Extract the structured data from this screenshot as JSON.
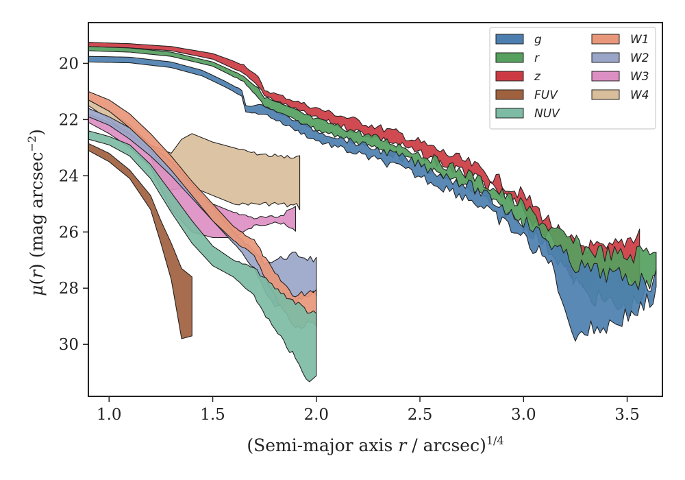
{
  "chart_data": {
    "type": "area",
    "xlabel": "(Semi-major axis r / arcsec)^{1/4}",
    "ylabel": "μ(r) (mag arcsec^{−2})",
    "xlim": [
      0.9,
      3.67
    ],
    "ylim": [
      31.85,
      18.55
    ],
    "y_inverted": true,
    "x_ticks": [
      "1.0",
      "1.5",
      "2.0",
      "2.5",
      "3.0",
      "3.5"
    ],
    "y_ticks": [
      "20",
      "22",
      "24",
      "26",
      "28",
      "30"
    ],
    "legend_position": "top-right",
    "series": [
      {
        "name": "g",
        "color": "#4c7fb0",
        "upper": [
          [
            0.9,
            19.75
          ],
          [
            1.1,
            19.78
          ],
          [
            1.3,
            19.95
          ],
          [
            1.45,
            20.25
          ],
          [
            1.55,
            20.6
          ],
          [
            1.64,
            20.95
          ],
          [
            1.66,
            21.5
          ],
          [
            1.75,
            21.5
          ],
          [
            2.0,
            22.4
          ],
          [
            2.4,
            23.3
          ],
          [
            2.75,
            24.4
          ],
          [
            3.0,
            25.6
          ],
          [
            3.15,
            26.5
          ],
          [
            3.25,
            27.2
          ],
          [
            3.4,
            27.5
          ],
          [
            3.6,
            27.8
          ],
          [
            3.64,
            27.7
          ]
        ],
        "lower": [
          [
            0.9,
            19.95
          ],
          [
            1.1,
            19.98
          ],
          [
            1.3,
            20.15
          ],
          [
            1.45,
            20.45
          ],
          [
            1.55,
            20.8
          ],
          [
            1.64,
            21.15
          ],
          [
            1.66,
            21.75
          ],
          [
            1.75,
            21.8
          ],
          [
            2.0,
            22.75
          ],
          [
            2.4,
            23.7
          ],
          [
            2.75,
            24.85
          ],
          [
            3.0,
            26.2
          ],
          [
            3.15,
            27.3
          ],
          [
            3.2,
            29.0
          ],
          [
            3.25,
            29.6
          ],
          [
            3.4,
            29.35
          ],
          [
            3.55,
            28.8
          ],
          [
            3.64,
            28.3
          ]
        ]
      },
      {
        "name": "r",
        "color": "#55a05e",
        "upper": [
          [
            0.9,
            19.4
          ],
          [
            1.1,
            19.45
          ],
          [
            1.3,
            19.6
          ],
          [
            1.5,
            19.95
          ],
          [
            1.65,
            20.45
          ],
          [
            1.72,
            20.9
          ],
          [
            1.75,
            21.2
          ],
          [
            2.0,
            22.0
          ],
          [
            2.4,
            22.9
          ],
          [
            2.75,
            24.0
          ],
          [
            3.0,
            25.1
          ],
          [
            3.15,
            26.0
          ],
          [
            3.3,
            26.6
          ],
          [
            3.5,
            26.9
          ],
          [
            3.64,
            26.5
          ]
        ],
        "lower": [
          [
            0.9,
            19.55
          ],
          [
            1.1,
            19.6
          ],
          [
            1.3,
            19.75
          ],
          [
            1.5,
            20.1
          ],
          [
            1.65,
            20.65
          ],
          [
            1.72,
            21.2
          ],
          [
            1.75,
            21.55
          ],
          [
            2.0,
            22.35
          ],
          [
            2.4,
            23.3
          ],
          [
            2.75,
            24.5
          ],
          [
            3.0,
            25.7
          ],
          [
            3.15,
            26.8
          ],
          [
            3.3,
            28.2
          ],
          [
            3.5,
            28.8
          ],
          [
            3.64,
            27.7
          ]
        ]
      },
      {
        "name": "z",
        "color": "#cc3b43",
        "upper": [
          [
            0.9,
            19.25
          ],
          [
            1.1,
            19.3
          ],
          [
            1.3,
            19.4
          ],
          [
            1.5,
            19.65
          ],
          [
            1.65,
            20.05
          ],
          [
            1.72,
            20.5
          ],
          [
            1.75,
            20.95
          ],
          [
            2.0,
            21.6
          ],
          [
            2.4,
            22.5
          ],
          [
            2.75,
            23.6
          ],
          [
            3.0,
            24.7
          ],
          [
            3.12,
            25.6
          ],
          [
            3.2,
            26.3
          ],
          [
            3.4,
            26.7
          ],
          [
            3.56,
            26.0
          ]
        ],
        "lower": [
          [
            0.9,
            19.4
          ],
          [
            1.1,
            19.45
          ],
          [
            1.3,
            19.55
          ],
          [
            1.5,
            19.85
          ],
          [
            1.65,
            20.35
          ],
          [
            1.72,
            20.8
          ],
          [
            1.75,
            21.15
          ],
          [
            2.0,
            21.95
          ],
          [
            2.4,
            22.9
          ],
          [
            2.75,
            24.05
          ],
          [
            3.0,
            25.2
          ],
          [
            3.12,
            26.2
          ],
          [
            3.2,
            27.1
          ],
          [
            3.3,
            28.0
          ],
          [
            3.4,
            27.5
          ],
          [
            3.56,
            27.9
          ]
        ]
      },
      {
        "name": "FUV",
        "color": "#a0613f",
        "upper": [
          [
            0.9,
            22.85
          ],
          [
            1.0,
            23.2
          ],
          [
            1.1,
            23.8
          ],
          [
            1.2,
            24.7
          ],
          [
            1.25,
            25.6
          ],
          [
            1.3,
            26.4
          ],
          [
            1.35,
            27.3
          ],
          [
            1.4,
            27.6
          ]
        ],
        "lower": [
          [
            0.9,
            23.1
          ],
          [
            1.0,
            23.5
          ],
          [
            1.1,
            24.1
          ],
          [
            1.2,
            25.2
          ],
          [
            1.25,
            26.4
          ],
          [
            1.3,
            27.7
          ],
          [
            1.35,
            29.8
          ],
          [
            1.4,
            29.7
          ]
        ]
      },
      {
        "name": "NUV",
        "color": "#7dbba4",
        "upper": [
          [
            0.9,
            22.4
          ],
          [
            1.0,
            22.6
          ],
          [
            1.1,
            22.9
          ],
          [
            1.2,
            23.6
          ],
          [
            1.3,
            24.6
          ],
          [
            1.4,
            25.6
          ],
          [
            1.5,
            26.5
          ],
          [
            1.6,
            27.0
          ],
          [
            1.7,
            27.3
          ],
          [
            1.8,
            28.0
          ],
          [
            1.9,
            28.5
          ],
          [
            2.0,
            29.0
          ]
        ],
        "lower": [
          [
            0.9,
            22.7
          ],
          [
            1.0,
            22.9
          ],
          [
            1.1,
            23.3
          ],
          [
            1.2,
            24.1
          ],
          [
            1.3,
            25.3
          ],
          [
            1.4,
            26.4
          ],
          [
            1.5,
            27.2
          ],
          [
            1.6,
            27.6
          ],
          [
            1.7,
            28.3
          ],
          [
            1.8,
            29.5
          ],
          [
            1.9,
            30.5
          ],
          [
            1.95,
            31.3
          ],
          [
            2.0,
            31.2
          ]
        ]
      },
      {
        "name": "W1",
        "color": "#e8977a",
        "upper": [
          [
            0.9,
            21.0
          ],
          [
            1.0,
            21.3
          ],
          [
            1.1,
            21.8
          ],
          [
            1.2,
            22.5
          ],
          [
            1.3,
            23.3
          ],
          [
            1.4,
            24.2
          ],
          [
            1.5,
            25.0
          ],
          [
            1.6,
            25.8
          ],
          [
            1.7,
            26.3
          ],
          [
            1.8,
            27.5
          ],
          [
            1.9,
            28.3
          ],
          [
            2.0,
            28.0
          ]
        ],
        "lower": [
          [
            0.9,
            21.3
          ],
          [
            1.0,
            21.7
          ],
          [
            1.1,
            22.3
          ],
          [
            1.2,
            23.0
          ],
          [
            1.3,
            23.8
          ],
          [
            1.4,
            24.7
          ],
          [
            1.5,
            25.6
          ],
          [
            1.6,
            26.3
          ],
          [
            1.7,
            26.8
          ],
          [
            1.8,
            28.3
          ],
          [
            1.9,
            29.4
          ],
          [
            2.0,
            29.2
          ]
        ]
      },
      {
        "name": "W2",
        "color": "#9aa5c8",
        "upper": [
          [
            0.9,
            21.6
          ],
          [
            1.0,
            21.9
          ],
          [
            1.1,
            22.3
          ],
          [
            1.2,
            22.9
          ],
          [
            1.3,
            23.5
          ],
          [
            1.4,
            24.3
          ],
          [
            1.5,
            25.1
          ],
          [
            1.6,
            26.0
          ],
          [
            1.7,
            26.7
          ],
          [
            1.75,
            27.1
          ],
          [
            1.8,
            27.0
          ],
          [
            1.9,
            26.8
          ],
          [
            2.0,
            27.0
          ]
        ],
        "lower": [
          [
            0.9,
            21.9
          ],
          [
            1.0,
            22.2
          ],
          [
            1.1,
            22.7
          ],
          [
            1.2,
            23.3
          ],
          [
            1.3,
            24.0
          ],
          [
            1.4,
            24.8
          ],
          [
            1.5,
            25.6
          ],
          [
            1.6,
            26.4
          ],
          [
            1.7,
            27.3
          ],
          [
            1.75,
            28.1
          ],
          [
            1.8,
            28.7
          ],
          [
            1.9,
            28.5
          ],
          [
            2.0,
            28.2
          ]
        ]
      },
      {
        "name": "W3",
        "color": "#dc8fc3",
        "upper": [
          [
            0.9,
            21.8
          ],
          [
            1.0,
            22.1
          ],
          [
            1.1,
            22.5
          ],
          [
            1.2,
            23.1
          ],
          [
            1.3,
            24.0
          ],
          [
            1.4,
            24.5
          ],
          [
            1.5,
            25.0
          ],
          [
            1.6,
            25.3
          ],
          [
            1.7,
            25.5
          ],
          [
            1.8,
            25.5
          ],
          [
            1.9,
            25.1
          ]
        ],
        "lower": [
          [
            0.9,
            22.1
          ],
          [
            1.0,
            22.5
          ],
          [
            1.1,
            23.0
          ],
          [
            1.2,
            23.7
          ],
          [
            1.3,
            25.2
          ],
          [
            1.4,
            26.0
          ],
          [
            1.5,
            26.2
          ],
          [
            1.6,
            26.2
          ],
          [
            1.7,
            25.8
          ],
          [
            1.8,
            25.6
          ],
          [
            1.9,
            26.0
          ]
        ]
      },
      {
        "name": "W4",
        "color": "#d9be9b",
        "upper": [
          [
            0.9,
            21.3
          ],
          [
            1.0,
            21.7
          ],
          [
            1.1,
            22.2
          ],
          [
            1.2,
            22.9
          ],
          [
            1.3,
            23.2
          ],
          [
            1.35,
            22.7
          ],
          [
            1.4,
            22.5
          ],
          [
            1.5,
            22.8
          ],
          [
            1.6,
            23.0
          ],
          [
            1.7,
            23.2
          ],
          [
            1.8,
            23.3
          ],
          [
            1.92,
            23.4
          ]
        ],
        "lower": [
          [
            0.9,
            21.5
          ],
          [
            1.0,
            22.0
          ],
          [
            1.1,
            22.6
          ],
          [
            1.2,
            23.3
          ],
          [
            1.25,
            24.3
          ],
          [
            1.3,
            24.5
          ],
          [
            1.4,
            24.4
          ],
          [
            1.5,
            24.7
          ],
          [
            1.6,
            25.0
          ],
          [
            1.7,
            25.0
          ],
          [
            1.8,
            25.0
          ],
          [
            1.92,
            25.1
          ]
        ]
      }
    ]
  }
}
